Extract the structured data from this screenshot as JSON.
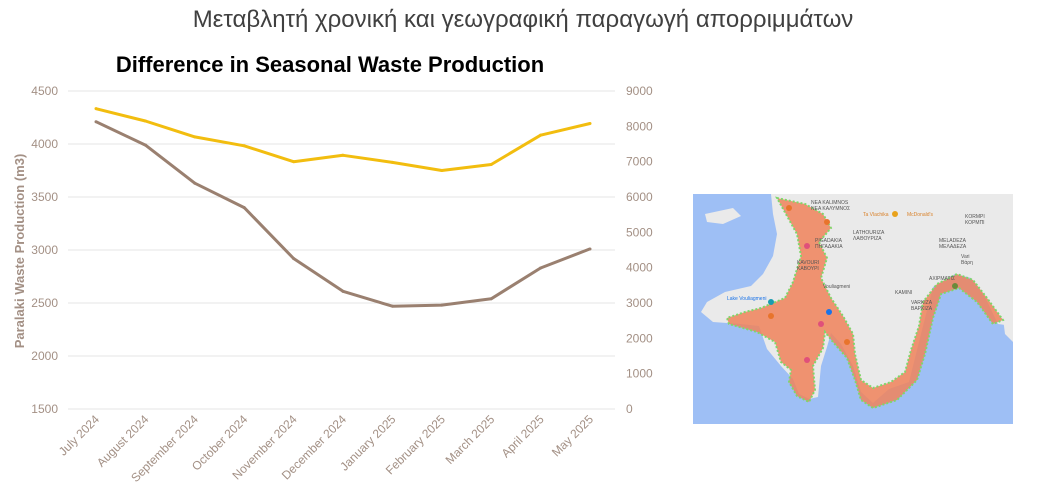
{
  "page": {
    "title": "Μεταβλητή χρονική και γεωγραφική παραγωγή απορριμμάτων"
  },
  "chart_data": {
    "type": "line",
    "title": "Difference in Seasonal Waste Production",
    "ylabel": "Paralaki Waste Production (m3)",
    "y2label": "",
    "categories": [
      "July 2024",
      "August 2024",
      "September 2024",
      "October 2024",
      "November 2024",
      "December 2024",
      "January 2025",
      "February 2025",
      "March 2025",
      "April 2025",
      "May 2025"
    ],
    "ylim": [
      1500,
      4500
    ],
    "yticks": [
      1500,
      2000,
      2500,
      3000,
      3500,
      4000,
      4500
    ],
    "y2lim": [
      0,
      9000
    ],
    "y2ticks": [
      0,
      1000,
      2000,
      3000,
      4000,
      5000,
      6000,
      7000,
      8000,
      9000
    ],
    "grid": true,
    "legend": "none",
    "series": [
      {
        "axis": "left",
        "color": "#9a8070",
        "values": [
          4210,
          3990,
          3630,
          3400,
          2920,
          2610,
          2470,
          2480,
          2540,
          2830,
          3010
        ]
      },
      {
        "axis": "right",
        "color": "#f2bd0f",
        "values": [
          8500,
          8150,
          7700,
          7450,
          7000,
          7180,
          6980,
          6750,
          6920,
          7750,
          8080
        ]
      }
    ]
  },
  "map": {
    "labels": [
      "NEA KALIMNOS",
      "ΝΕΑ ΚΑΛΥΜΝΟΣ",
      "Ta Vlachika",
      "McDonald's",
      "LATHOURIZA",
      "ΛΑΘΟΥΡΙΖΑ",
      "KORMPI",
      "ΚΟΡΜΠΙ",
      "MELADEZA",
      "ΜΕΛΑΔΕΖΑ",
      "Vari",
      "Βάρη",
      "PIGADAKIA",
      "ΠΗΓΑΔΑΚΙΑ",
      "KAVOURI",
      "ΚΑΒΟΥΡΙ",
      "Vouliagmeni",
      "ΑΧΙΡΜΑΤΙΣ",
      "VARKIZA",
      "ΒΑΡΚΙΖΑ",
      "KAMINI",
      "Lake Vouliagmeni"
    ],
    "colors": {
      "sea": "#9ebff5",
      "land": "#eaeaea",
      "zone": "#f0825a",
      "zone_edge": "#7fd66a"
    }
  }
}
